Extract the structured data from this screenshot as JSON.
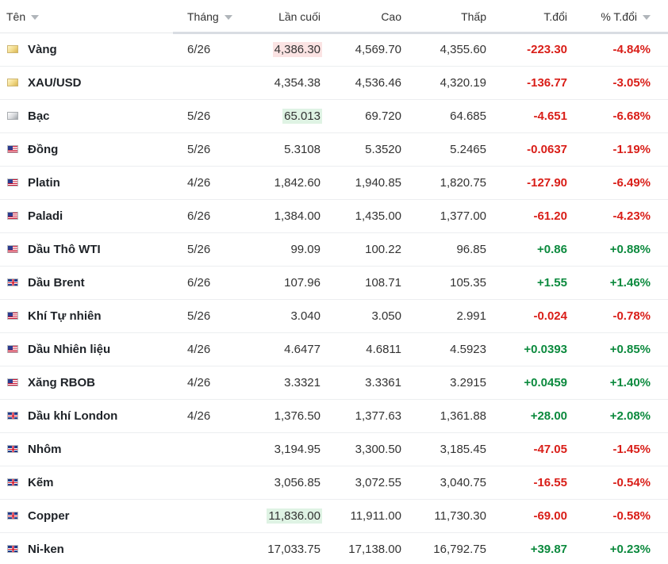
{
  "header": {
    "name": "Tên",
    "month": "Tháng",
    "last": "Lần cuối",
    "high": "Cao",
    "low": "Thấp",
    "change": "T.đổi",
    "pct_change": "% T.đổi"
  },
  "rows": [
    {
      "flag": "gold-bar-icon",
      "name": "Vàng",
      "month": "6/26",
      "last": "4,386.30",
      "high": "4,569.70",
      "low": "4,355.60",
      "change": "-223.30",
      "pct": "-4.84%",
      "dir": "neg",
      "last_flash": "red"
    },
    {
      "flag": "gold-bar-icon",
      "name": "XAU/USD",
      "month": "",
      "last": "4,354.38",
      "high": "4,536.46",
      "low": "4,320.19",
      "change": "-136.77",
      "pct": "-3.05%",
      "dir": "neg",
      "last_flash": ""
    },
    {
      "flag": "silver-bar-icon",
      "name": "Bạc",
      "month": "5/26",
      "last": "65.013",
      "high": "69.720",
      "low": "64.685",
      "change": "-4.651",
      "pct": "-6.68%",
      "dir": "neg",
      "last_flash": "green"
    },
    {
      "flag": "us-flag-icon",
      "name": "Đồng",
      "month": "5/26",
      "last": "5.3108",
      "high": "5.3520",
      "low": "5.2465",
      "change": "-0.0637",
      "pct": "-1.19%",
      "dir": "neg",
      "last_flash": ""
    },
    {
      "flag": "us-flag-icon",
      "name": "Platin",
      "month": "4/26",
      "last": "1,842.60",
      "high": "1,940.85",
      "low": "1,820.75",
      "change": "-127.90",
      "pct": "-6.49%",
      "dir": "neg",
      "last_flash": ""
    },
    {
      "flag": "us-flag-icon",
      "name": "Paladi",
      "month": "6/26",
      "last": "1,384.00",
      "high": "1,435.00",
      "low": "1,377.00",
      "change": "-61.20",
      "pct": "-4.23%",
      "dir": "neg",
      "last_flash": ""
    },
    {
      "flag": "us-flag-icon",
      "name": "Dầu Thô WTI",
      "month": "5/26",
      "last": "99.09",
      "high": "100.22",
      "low": "96.85",
      "change": "+0.86",
      "pct": "+0.88%",
      "dir": "pos",
      "last_flash": ""
    },
    {
      "flag": "uk-flag-icon",
      "name": "Dầu Brent",
      "month": "6/26",
      "last": "107.96",
      "high": "108.71",
      "low": "105.35",
      "change": "+1.55",
      "pct": "+1.46%",
      "dir": "pos",
      "last_flash": ""
    },
    {
      "flag": "us-flag-icon",
      "name": "Khí Tự nhiên",
      "month": "5/26",
      "last": "3.040",
      "high": "3.050",
      "low": "2.991",
      "change": "-0.024",
      "pct": "-0.78%",
      "dir": "neg",
      "last_flash": ""
    },
    {
      "flag": "us-flag-icon",
      "name": "Dầu Nhiên liệu",
      "month": "4/26",
      "last": "4.6477",
      "high": "4.6811",
      "low": "4.5923",
      "change": "+0.0393",
      "pct": "+0.85%",
      "dir": "pos",
      "last_flash": ""
    },
    {
      "flag": "us-flag-icon",
      "name": "Xăng RBOB",
      "month": "4/26",
      "last": "3.3321",
      "high": "3.3361",
      "low": "3.2915",
      "change": "+0.0459",
      "pct": "+1.40%",
      "dir": "pos",
      "last_flash": ""
    },
    {
      "flag": "uk-flag-icon",
      "name": "Dầu khí London",
      "month": "4/26",
      "last": "1,376.50",
      "high": "1,377.63",
      "low": "1,361.88",
      "change": "+28.00",
      "pct": "+2.08%",
      "dir": "pos",
      "last_flash": ""
    },
    {
      "flag": "uk-flag-icon",
      "name": "Nhôm",
      "month": "",
      "last": "3,194.95",
      "high": "3,300.50",
      "low": "3,185.45",
      "change": "-47.05",
      "pct": "-1.45%",
      "dir": "neg",
      "last_flash": ""
    },
    {
      "flag": "uk-flag-icon",
      "name": "Kẽm",
      "month": "",
      "last": "3,056.85",
      "high": "3,072.55",
      "low": "3,040.75",
      "change": "-16.55",
      "pct": "-0.54%",
      "dir": "neg",
      "last_flash": ""
    },
    {
      "flag": "uk-flag-icon",
      "name": "Copper",
      "month": "",
      "last": "11,836.00",
      "high": "11,911.00",
      "low": "11,730.30",
      "change": "-69.00",
      "pct": "-0.58%",
      "dir": "neg",
      "last_flash": "green"
    },
    {
      "flag": "uk-flag-icon",
      "name": "Ni-ken",
      "month": "",
      "last": "17,033.75",
      "high": "17,138.00",
      "low": "16,792.75",
      "change": "+39.87",
      "pct": "+0.23%",
      "dir": "pos",
      "last_flash": ""
    }
  ],
  "colors": {
    "negative": "#d91e18",
    "positive": "#0c8a3e",
    "flash_red": "#fbe3e3",
    "flash_green": "#dff3e4"
  }
}
